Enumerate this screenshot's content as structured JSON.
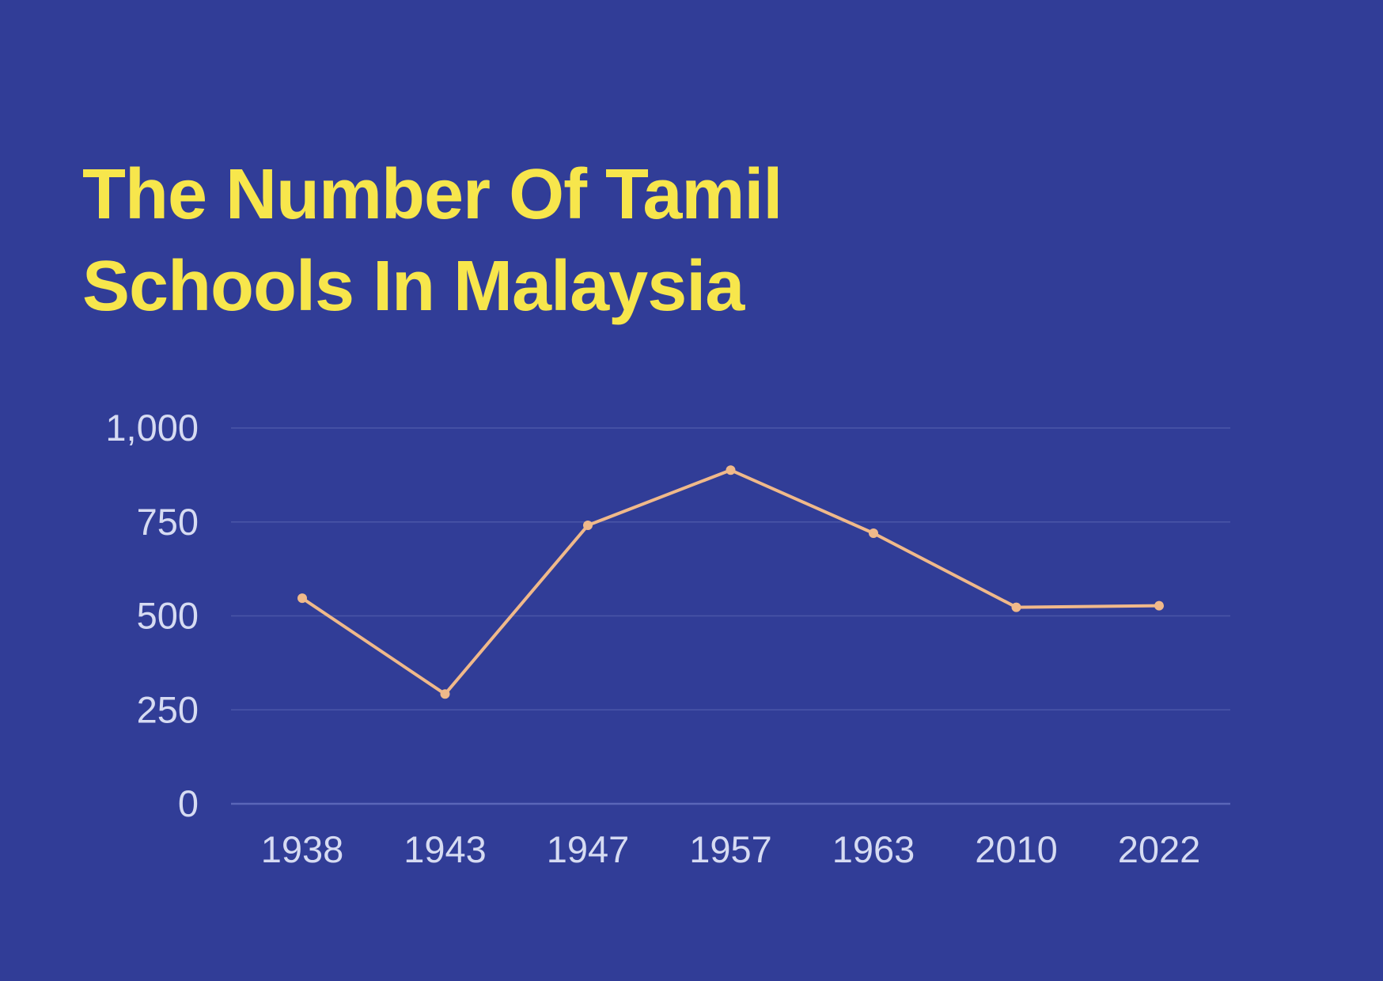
{
  "chart_data": {
    "type": "line",
    "title": "The Number Of Tamil Schools In Malaysia",
    "title_lines": [
      "The Number Of Tamil",
      "Schools In Malaysia"
    ],
    "categories": [
      "1938",
      "1943",
      "1947",
      "1957",
      "1963",
      "2010",
      "2022"
    ],
    "values": [
      547,
      292,
      741,
      888,
      720,
      523,
      527
    ],
    "xlabel": "",
    "ylabel": "",
    "ylim": [
      0,
      1000
    ],
    "yticks": [
      0,
      250,
      500,
      750,
      1000
    ],
    "ytick_labels": [
      "0",
      "250",
      "500",
      "750",
      "1,000"
    ],
    "grid": true,
    "legend": "none",
    "colors": {
      "background": "#313d97",
      "title": "#f7e64c",
      "line": "#f0b98a",
      "grid": "#4a56a8",
      "axis": "#5a66b8",
      "tick_text": "#d6dbf2"
    }
  }
}
